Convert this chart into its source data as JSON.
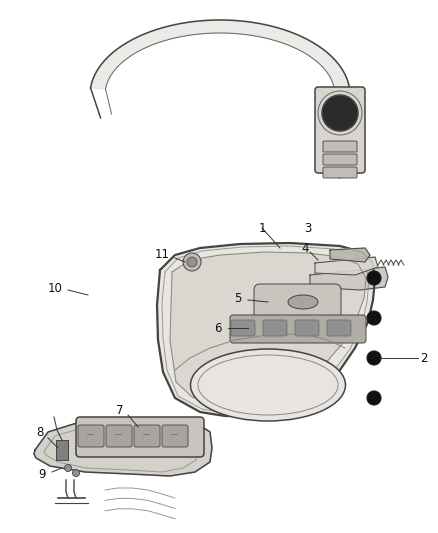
{
  "bg_color": "#ffffff",
  "line_color": "#444444",
  "fill_light": "#e8e5e0",
  "fill_mid": "#d0ccc6",
  "fill_dark": "#b8b4ae",
  "label_color": "#111111"
}
